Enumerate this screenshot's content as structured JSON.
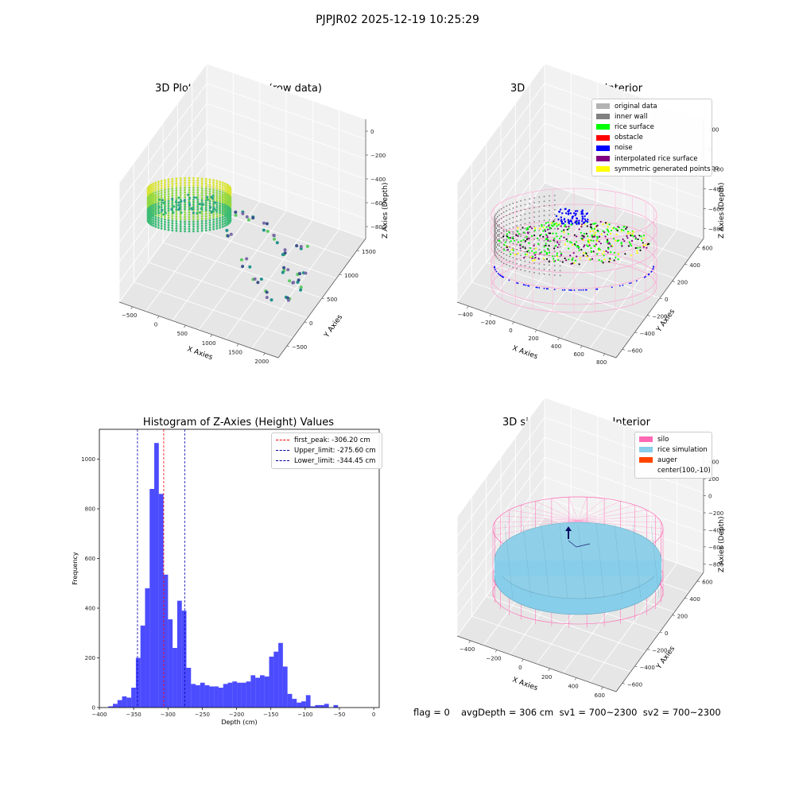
{
  "figure": {
    "suptitle": "PJPJR02 2025-12-19 10:25:29"
  },
  "panels": {
    "raw": {
      "title": "3D Plot of Silo Interior(row data)",
      "xlabel": "X Axies",
      "ylabel": "Y Axies",
      "zlabel": "Z Axies (Depth)",
      "xticks": [
        "−500",
        "0",
        "500",
        "1000",
        "1500",
        "2000"
      ],
      "yticks": [
        "−500",
        "0",
        "500",
        "1000",
        "1500"
      ],
      "zticks": [
        "0",
        "−200",
        "−400",
        "−600",
        "−800"
      ]
    },
    "classify": {
      "title": "3D classify of Silo Interior",
      "xlabel": "X Axies",
      "ylabel": "Y Axies",
      "zlabel": "Z Axies (Depth)",
      "xticks": [
        "−400",
        "−200",
        "0",
        "200",
        "400",
        "600",
        "800"
      ],
      "yticks": [
        "−600",
        "−400",
        "−200",
        "0",
        "200",
        "400",
        "600"
      ],
      "zticks": [
        "200",
        "0",
        "−200",
        "−400",
        "−600",
        "−800"
      ],
      "legend": [
        {
          "label": "original data",
          "color": "#b3b3b3"
        },
        {
          "label": "inner wall",
          "color": "#808080"
        },
        {
          "label": "rice surface",
          "color": "#00ff00"
        },
        {
          "label": "obstacle",
          "color": "#ff0000"
        },
        {
          "label": "noise",
          "color": "#0000ff"
        },
        {
          "label": "interpolated rice surface",
          "color": "#800080"
        },
        {
          "label": "symmetric generated points",
          "color": "#ffff00"
        }
      ],
      "partial_tick": "00"
    },
    "histogram": {
      "title": "Histogram of Z-Axies (Height) Values",
      "xlabel": "Depth (cm)",
      "ylabel": "Frequency",
      "legend": [
        {
          "label": "first_peak: -306.20 cm",
          "color": "#ff0000"
        },
        {
          "label": "Upper_limit: -275.60 cm",
          "color": "#0000aa"
        },
        {
          "label": "Lower_limit: -344.45 cm",
          "color": "#0000aa"
        }
      ]
    },
    "simulation": {
      "title": "3D simulation of Silo Interior",
      "xlabel": "X Axies",
      "ylabel": "Y Axies",
      "zlabel": "Z Axies (Depth)",
      "xticks": [
        "−400",
        "−200",
        "0",
        "200",
        "400",
        "600"
      ],
      "yticks": [
        "−600",
        "−400",
        "−200",
        "0",
        "200",
        "400",
        "600"
      ],
      "zticks": [
        "400",
        "200",
        "0",
        "−200",
        "−400",
        "−600",
        "−800"
      ],
      "legend": [
        {
          "label": "silo",
          "color": "#ff69b4"
        },
        {
          "label": "rice simulation",
          "color": "#87ceeb"
        },
        {
          "label": "auger",
          "color": "#ff4500"
        },
        {
          "label": "center(100,-10)",
          "color": ""
        }
      ]
    }
  },
  "footer": {
    "flag": "flag = 0",
    "avg": "avgDepth = 306 cm  sv1 = 700~2300  sv2 = 700~2300"
  },
  "chart_data": [
    {
      "type": "scatter",
      "title": "3D Plot of Silo Interior(row data)",
      "xlabel": "X Axies",
      "ylabel": "Y Axies",
      "zlabel": "Z Axies (Depth)",
      "xlim": [
        -600,
        2200
      ],
      "ylim": [
        -600,
        1800
      ],
      "zlim": [
        -900,
        0
      ]
    },
    {
      "type": "scatter",
      "title": "3D classify of Silo Interior",
      "xlabel": "X Axies",
      "ylabel": "Y Axies",
      "zlabel": "Z Axies (Depth)",
      "series": [
        {
          "name": "original data"
        },
        {
          "name": "inner wall"
        },
        {
          "name": "rice surface"
        },
        {
          "name": "obstacle"
        },
        {
          "name": "noise"
        },
        {
          "name": "interpolated rice surface"
        },
        {
          "name": "symmetric generated points"
        }
      ]
    },
    {
      "type": "bar",
      "title": "Histogram of Z-Axies (Height) Values",
      "xlabel": "Depth (cm)",
      "ylabel": "Frequency",
      "bin_start": -387,
      "bin_width": 6.7,
      "values": [
        5,
        15,
        30,
        45,
        40,
        80,
        200,
        330,
        480,
        880,
        1065,
        860,
        535,
        355,
        240,
        430,
        390,
        160,
        95,
        90,
        100,
        90,
        85,
        85,
        80,
        95,
        100,
        105,
        100,
        100,
        105,
        130,
        120,
        130,
        125,
        205,
        225,
        260,
        165,
        55,
        35,
        20,
        25,
        50,
        5,
        10,
        10,
        15,
        0,
        10
      ],
      "xlim": [
        -400,
        8
      ],
      "ylim": [
        0,
        1120
      ],
      "xticks": [
        -400,
        -350,
        -300,
        -250,
        -200,
        -150,
        -100,
        -50,
        0
      ],
      "yticks": [
        0,
        200,
        400,
        600,
        800,
        1000
      ],
      "vlines": [
        {
          "name": "first_peak: -306.20 cm",
          "x": -306.2,
          "color": "#ff0000"
        },
        {
          "name": "Upper_limit: -275.60 cm",
          "x": -275.6,
          "color": "#0000aa"
        },
        {
          "name": "Lower_limit: -344.45 cm",
          "x": -344.45,
          "color": "#0000aa"
        }
      ]
    },
    {
      "type": "surface",
      "title": "3D simulation of Silo Interior",
      "xlabel": "X Axies",
      "ylabel": "Y Axies",
      "zlabel": "Z Axies (Depth)",
      "series": [
        {
          "name": "silo"
        },
        {
          "name": "rice simulation"
        },
        {
          "name": "auger"
        },
        {
          "name": "center(100,-10)"
        }
      ]
    }
  ]
}
